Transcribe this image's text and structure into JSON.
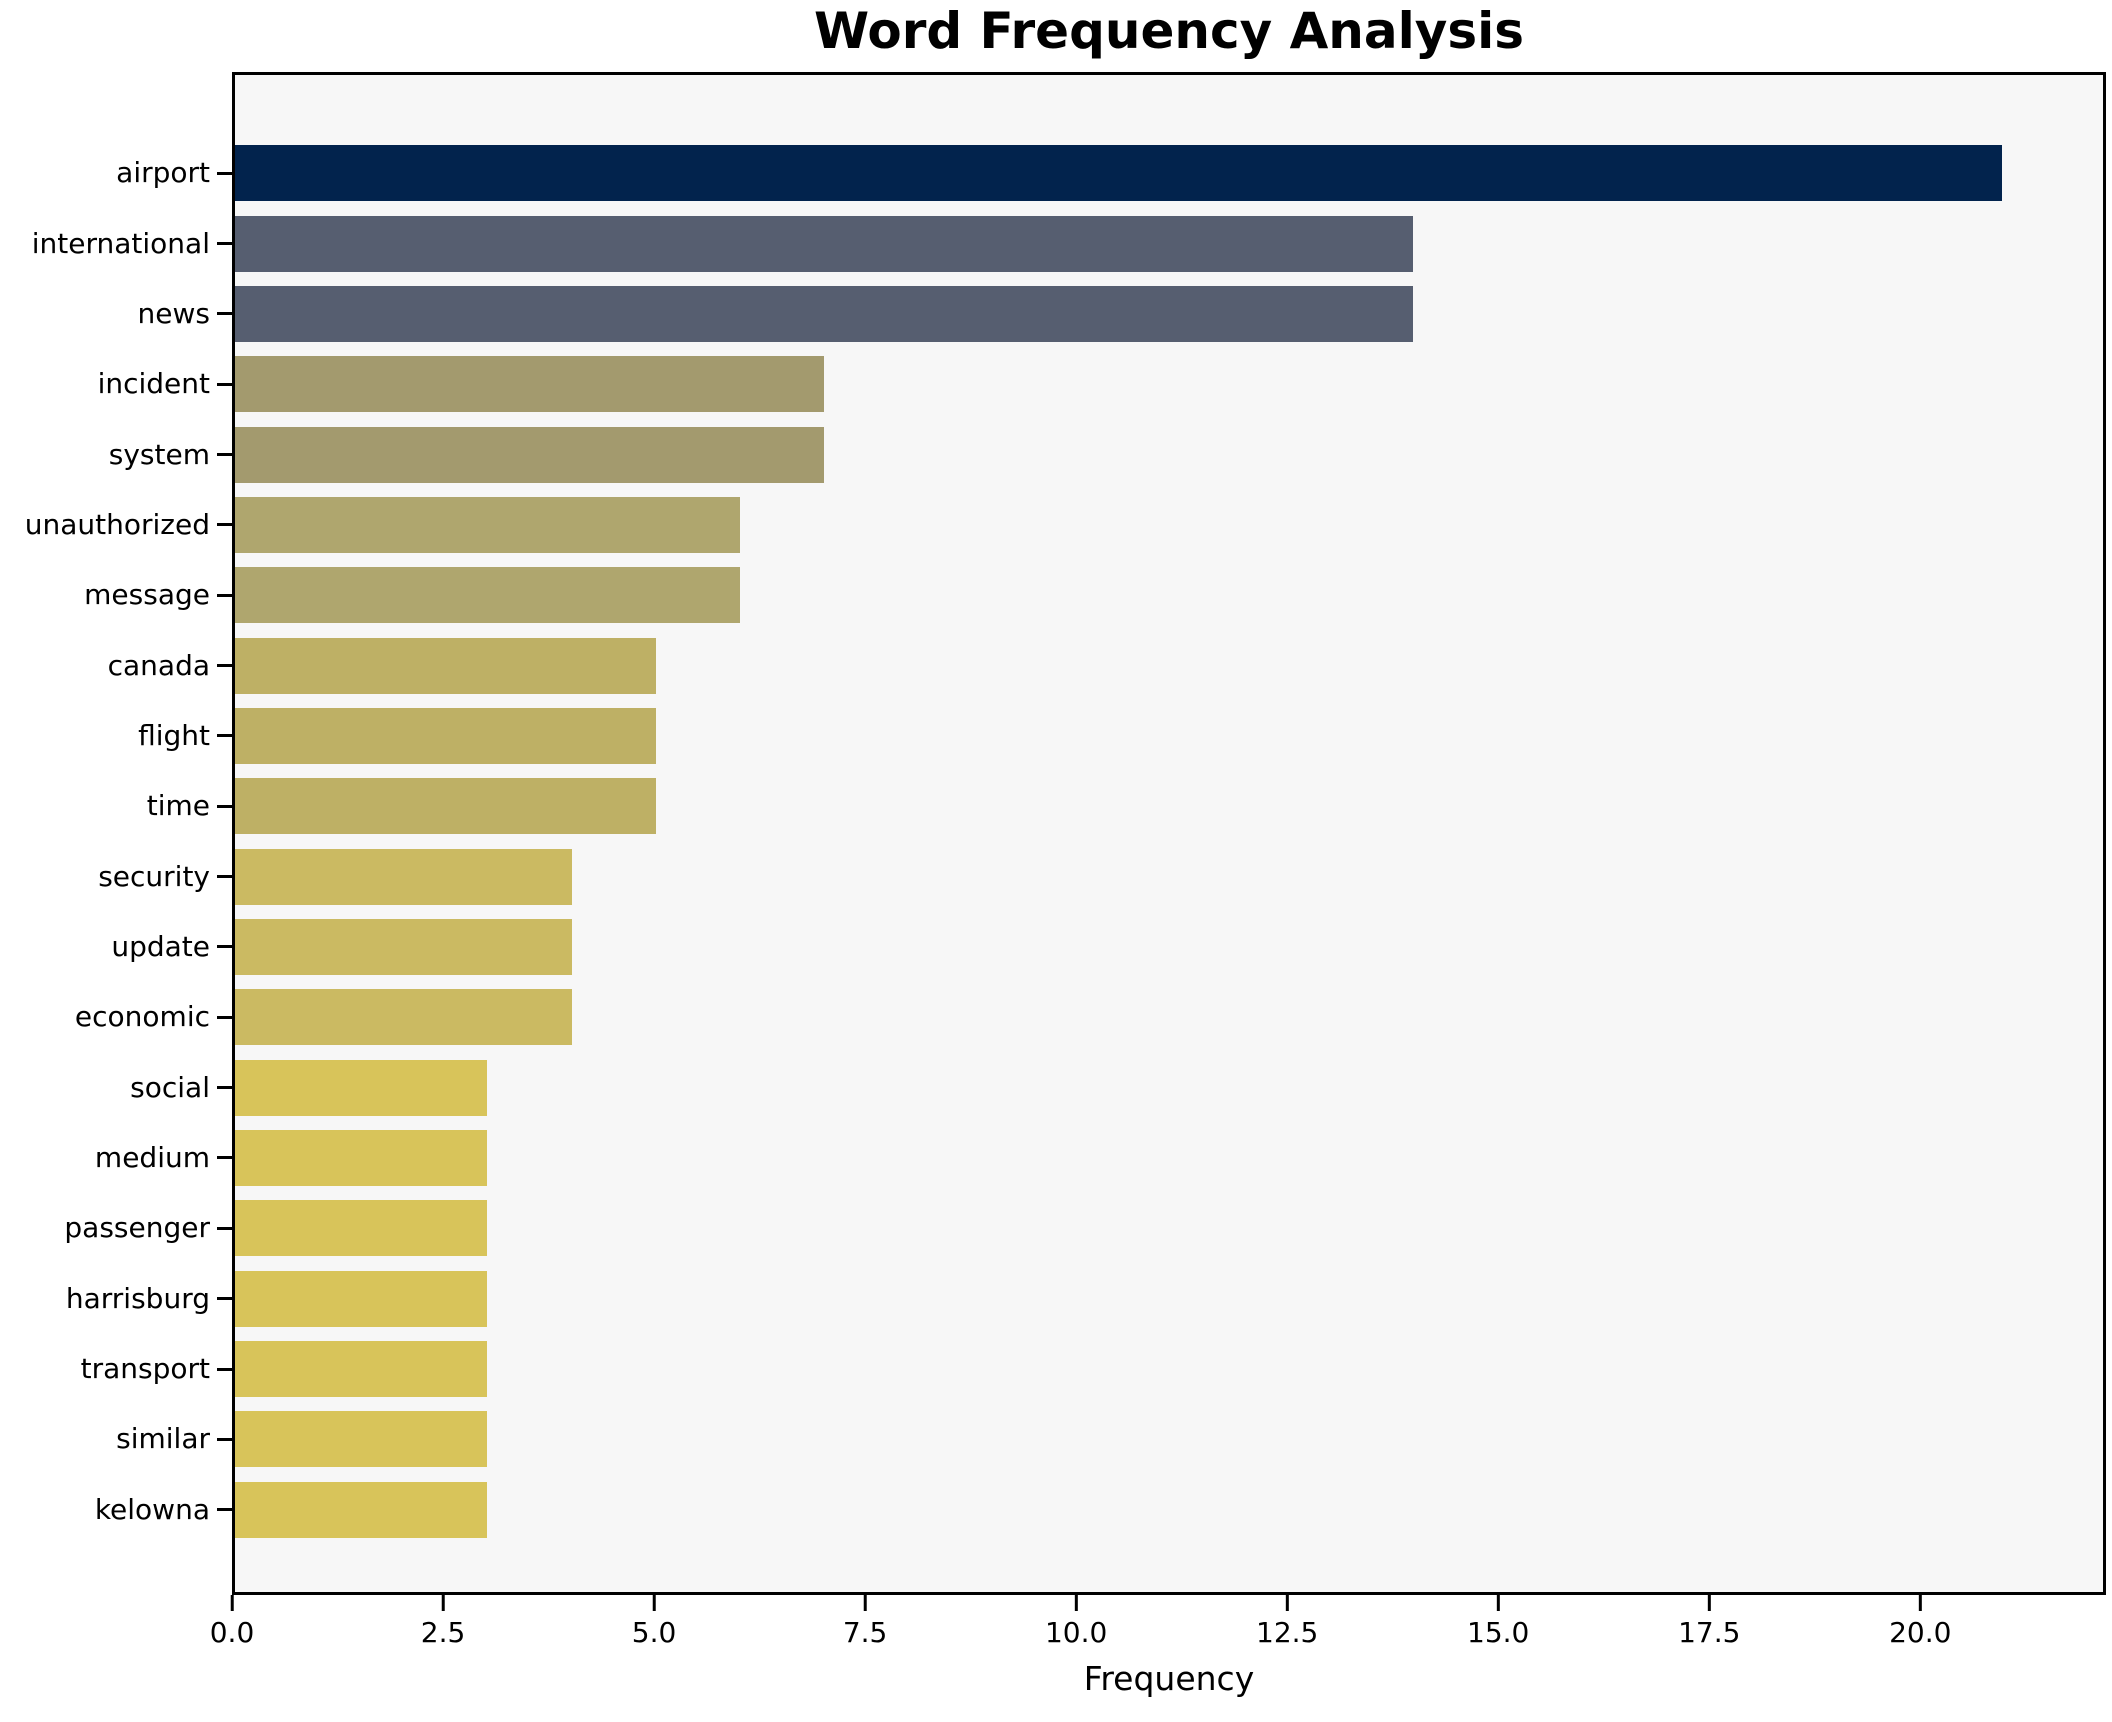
{
  "chart_data": {
    "type": "bar",
    "orientation": "horizontal",
    "title": "Word Frequency Analysis",
    "xlabel": "Frequency",
    "ylabel": "",
    "grid": false,
    "legend": null,
    "plot_background": "#f7f7f7",
    "figure_background": "#ffffff",
    "xlim": [
      0,
      22.2
    ],
    "x_ticks": [
      0,
      2.5,
      5,
      7.5,
      10,
      12.5,
      15,
      17.5,
      20
    ],
    "categories": [
      "airport",
      "international",
      "news",
      "incident",
      "system",
      "unauthorized",
      "message",
      "canada",
      "flight",
      "time",
      "security",
      "update",
      "economic",
      "social",
      "medium",
      "passenger",
      "harrisburg",
      "transport",
      "similar",
      "kelowna"
    ],
    "values": [
      21,
      14,
      14,
      7,
      7,
      6,
      6,
      5,
      5,
      5,
      4,
      4,
      4,
      3,
      3,
      3,
      3,
      3,
      3,
      3
    ],
    "bar_colors": [
      "#02234d",
      "#565e70",
      "#565e70",
      "#a39a6e",
      "#a39a6e",
      "#afa66e",
      "#afa66e",
      "#beb065",
      "#beb065",
      "#beb065",
      "#cbba62",
      "#cbba62",
      "#cbba62",
      "#d8c45a",
      "#d8c45a",
      "#d8c45a",
      "#d8c45a",
      "#d8c45a",
      "#d8c45a",
      "#d8c45a"
    ]
  }
}
